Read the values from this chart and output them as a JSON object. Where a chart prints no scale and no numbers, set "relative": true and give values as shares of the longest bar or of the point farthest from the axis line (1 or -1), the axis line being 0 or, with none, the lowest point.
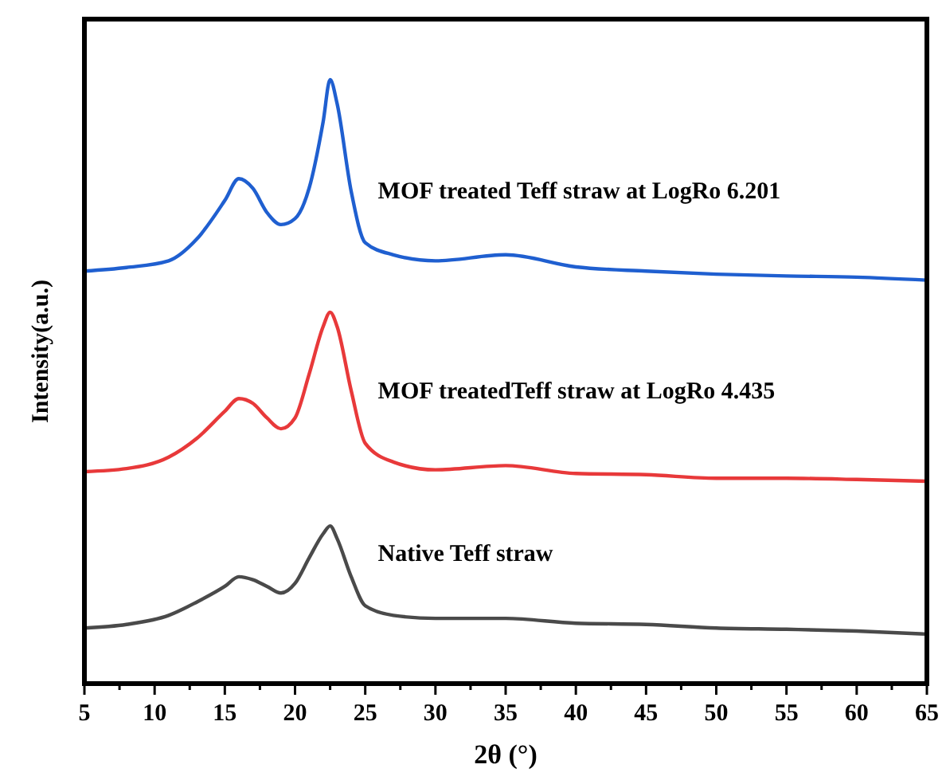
{
  "chart_data": {
    "type": "line",
    "relative": true,
    "xlabel": "2θ (°)",
    "ylabel": "Intensity(a.u.)",
    "xlim": [
      5,
      65
    ],
    "xticks": [
      5,
      {
        "value": 7.5,
        "label": null
      },
      10,
      {
        "value": 12.5,
        "label": null
      },
      15,
      {
        "value": 17.5,
        "label": null
      },
      20,
      {
        "value": 22.5,
        "label": null
      },
      25,
      {
        "value": 27.5,
        "label": null
      },
      30,
      {
        "value": 32.5,
        "label": null
      },
      35,
      {
        "value": 37.5,
        "label": null
      },
      40,
      {
        "value": 42.5,
        "label": null
      },
      45,
      {
        "value": 47.5,
        "label": null
      },
      50,
      {
        "value": 52.5,
        "label": null
      },
      55,
      {
        "value": 57.5,
        "label": null
      },
      60,
      {
        "value": 62.5,
        "label": null
      },
      65
    ],
    "x": [
      5,
      8,
      11,
      13,
      15,
      16,
      17,
      18,
      19,
      20,
      21,
      22,
      22.5,
      23,
      24,
      25,
      27,
      30,
      35,
      40,
      45,
      50,
      55,
      60,
      65
    ],
    "grid": false,
    "marker": "none",
    "line_style": "solid",
    "series": [
      {
        "name": "MOF treated Teff straw at LogRo 6.201",
        "color": "#1f5fd0",
        "values": [
          0.683,
          0.689,
          0.7,
          0.736,
          0.8,
          0.836,
          0.82,
          0.78,
          0.76,
          0.77,
          0.82,
          0.93,
          1.0,
          0.96,
          0.815,
          0.73,
          0.71,
          0.7,
          0.71,
          0.69,
          0.683,
          0.678,
          0.675,
          0.673,
          0.668
        ]
      },
      {
        "name": "MOF treatedTeff straw at LogRo 4.435",
        "color": "#e8393a",
        "values": [
          0.351,
          0.356,
          0.375,
          0.406,
          0.451,
          0.472,
          0.464,
          0.44,
          0.422,
          0.44,
          0.512,
          0.591,
          0.615,
          0.591,
          0.485,
          0.398,
          0.367,
          0.354,
          0.361,
          0.348,
          0.346,
          0.34,
          0.34,
          0.338,
          0.335
        ]
      },
      {
        "name": "Native Teff straw",
        "color": "#4a4a4a",
        "values": [
          0.092,
          0.098,
          0.113,
          0.135,
          0.161,
          0.177,
          0.172,
          0.161,
          0.15,
          0.166,
          0.208,
          0.248,
          0.261,
          0.24,
          0.177,
          0.129,
          0.113,
          0.108,
          0.108,
          0.1,
          0.098,
          0.092,
          0.09,
          0.087,
          0.082
        ]
      }
    ]
  }
}
